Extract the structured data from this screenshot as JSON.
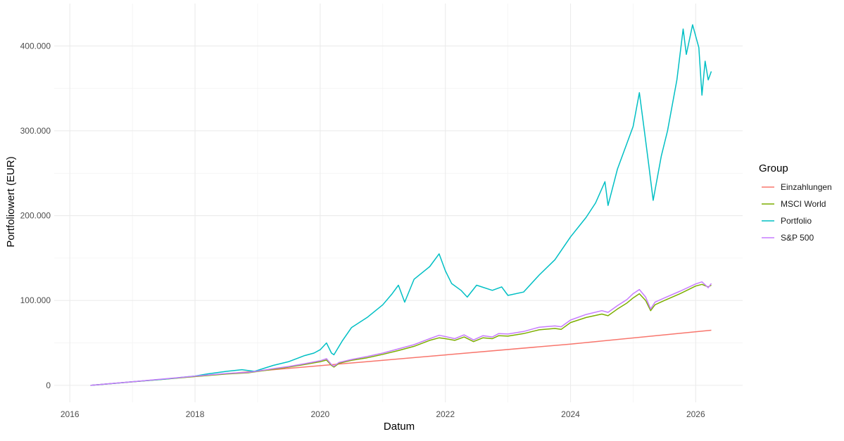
{
  "chart_data": {
    "type": "line",
    "title": "",
    "xlabel": "Datum",
    "ylabel": "Portfoliowert (EUR)",
    "x_tick_labels": [
      "2016",
      "2018",
      "2020",
      "2022",
      "2024",
      "2026"
    ],
    "x_ticks": [
      2016,
      2018,
      2020,
      2022,
      2024,
      2026
    ],
    "y_tick_labels": [
      "0",
      "100.000",
      "200.000",
      "300.000",
      "400.000"
    ],
    "y_ticks": [
      0,
      100000,
      200000,
      300000,
      400000
    ],
    "xlim": [
      2015.75,
      2026.75
    ],
    "ylim": [
      -20000,
      450000
    ],
    "grid": true,
    "legend": {
      "title": "Group",
      "position": "right"
    },
    "series": [
      {
        "name": "Einzahlungen",
        "color": "#F8766D",
        "points": [
          [
            2016.33,
            0
          ],
          [
            2018.0,
            10500
          ],
          [
            2020.0,
            23200
          ],
          [
            2022.0,
            35900
          ],
          [
            2024.0,
            48600
          ],
          [
            2026.25,
            65000
          ]
        ]
      },
      {
        "name": "MSCI World",
        "color": "#7CAE00",
        "points": [
          [
            2016.33,
            0
          ],
          [
            2016.75,
            2600
          ],
          [
            2017.0,
            4100
          ],
          [
            2017.5,
            7200
          ],
          [
            2018.0,
            10300
          ],
          [
            2018.5,
            13400
          ],
          [
            2018.85,
            14800
          ],
          [
            2018.95,
            15900
          ],
          [
            2019.25,
            19000
          ],
          [
            2019.5,
            21500
          ],
          [
            2019.75,
            24500
          ],
          [
            2020.0,
            27800
          ],
          [
            2020.1,
            29800
          ],
          [
            2020.18,
            23500
          ],
          [
            2020.22,
            21500
          ],
          [
            2020.3,
            26000
          ],
          [
            2020.5,
            29500
          ],
          [
            2020.75,
            32500
          ],
          [
            2021.0,
            36500
          ],
          [
            2021.25,
            41000
          ],
          [
            2021.5,
            46000
          ],
          [
            2021.75,
            53000
          ],
          [
            2021.9,
            56000
          ],
          [
            2022.0,
            55000
          ],
          [
            2022.15,
            53000
          ],
          [
            2022.3,
            57000
          ],
          [
            2022.45,
            51500
          ],
          [
            2022.6,
            56000
          ],
          [
            2022.75,
            55000
          ],
          [
            2022.85,
            58500
          ],
          [
            2023.0,
            58000
          ],
          [
            2023.25,
            61000
          ],
          [
            2023.5,
            65500
          ],
          [
            2023.75,
            67000
          ],
          [
            2023.85,
            66000
          ],
          [
            2024.0,
            74000
          ],
          [
            2024.25,
            80000
          ],
          [
            2024.5,
            84000
          ],
          [
            2024.6,
            82000
          ],
          [
            2024.75,
            90000
          ],
          [
            2024.9,
            97000
          ],
          [
            2025.0,
            103000
          ],
          [
            2025.1,
            108000
          ],
          [
            2025.2,
            100000
          ],
          [
            2025.28,
            88000
          ],
          [
            2025.35,
            95000
          ],
          [
            2025.5,
            100000
          ],
          [
            2025.75,
            108000
          ],
          [
            2026.0,
            117000
          ],
          [
            2026.1,
            119000
          ],
          [
            2026.2,
            116000
          ],
          [
            2026.25,
            118000
          ]
        ]
      },
      {
        "name": "Portfolio",
        "color": "#00BFC4",
        "points": [
          [
            2016.33,
            0
          ],
          [
            2016.75,
            2600
          ],
          [
            2017.0,
            4200
          ],
          [
            2017.5,
            7300
          ],
          [
            2018.0,
            11000
          ],
          [
            2018.2,
            13500
          ],
          [
            2018.5,
            16500
          ],
          [
            2018.75,
            18500
          ],
          [
            2018.95,
            16500
          ],
          [
            2019.25,
            23500
          ],
          [
            2019.5,
            28000
          ],
          [
            2019.75,
            35000
          ],
          [
            2019.9,
            38000
          ],
          [
            2020.0,
            42000
          ],
          [
            2020.1,
            50000
          ],
          [
            2020.18,
            38000
          ],
          [
            2020.22,
            36000
          ],
          [
            2020.35,
            52000
          ],
          [
            2020.5,
            68000
          ],
          [
            2020.75,
            80000
          ],
          [
            2021.0,
            95000
          ],
          [
            2021.15,
            108000
          ],
          [
            2021.25,
            118000
          ],
          [
            2021.35,
            98000
          ],
          [
            2021.5,
            125000
          ],
          [
            2021.75,
            140000
          ],
          [
            2021.9,
            155000
          ],
          [
            2022.0,
            135000
          ],
          [
            2022.1,
            120000
          ],
          [
            2022.25,
            112000
          ],
          [
            2022.35,
            104000
          ],
          [
            2022.5,
            118000
          ],
          [
            2022.75,
            112000
          ],
          [
            2022.9,
            116000
          ],
          [
            2023.0,
            106000
          ],
          [
            2023.25,
            110000
          ],
          [
            2023.5,
            130000
          ],
          [
            2023.75,
            148000
          ],
          [
            2024.0,
            175000
          ],
          [
            2024.25,
            198000
          ],
          [
            2024.4,
            215000
          ],
          [
            2024.55,
            240000
          ],
          [
            2024.6,
            212000
          ],
          [
            2024.75,
            255000
          ],
          [
            2024.9,
            285000
          ],
          [
            2025.0,
            305000
          ],
          [
            2025.1,
            345000
          ],
          [
            2025.18,
            300000
          ],
          [
            2025.25,
            260000
          ],
          [
            2025.32,
            218000
          ],
          [
            2025.45,
            270000
          ],
          [
            2025.55,
            300000
          ],
          [
            2025.7,
            360000
          ],
          [
            2025.8,
            420000
          ],
          [
            2025.85,
            390000
          ],
          [
            2025.95,
            425000
          ],
          [
            2026.05,
            398000
          ],
          [
            2026.1,
            342000
          ],
          [
            2026.15,
            382000
          ],
          [
            2026.2,
            360000
          ],
          [
            2026.25,
            370000
          ]
        ]
      },
      {
        "name": "S&P 500",
        "color": "#C77CFF",
        "points": [
          [
            2016.33,
            0
          ],
          [
            2016.75,
            2700
          ],
          [
            2017.0,
            4300
          ],
          [
            2017.5,
            7500
          ],
          [
            2018.0,
            10800
          ],
          [
            2018.5,
            14000
          ],
          [
            2018.85,
            15300
          ],
          [
            2018.95,
            16200
          ],
          [
            2019.25,
            19700
          ],
          [
            2019.5,
            22300
          ],
          [
            2019.75,
            25500
          ],
          [
            2020.0,
            29000
          ],
          [
            2020.1,
            31500
          ],
          [
            2020.18,
            24500
          ],
          [
            2020.22,
            22500
          ],
          [
            2020.3,
            27000
          ],
          [
            2020.5,
            30500
          ],
          [
            2020.75,
            34000
          ],
          [
            2021.0,
            38000
          ],
          [
            2021.25,
            43000
          ],
          [
            2021.5,
            48000
          ],
          [
            2021.75,
            55000
          ],
          [
            2021.9,
            59000
          ],
          [
            2022.0,
            57500
          ],
          [
            2022.15,
            55000
          ],
          [
            2022.3,
            59500
          ],
          [
            2022.45,
            53500
          ],
          [
            2022.6,
            58500
          ],
          [
            2022.75,
            57000
          ],
          [
            2022.85,
            61000
          ],
          [
            2023.0,
            60500
          ],
          [
            2023.25,
            63500
          ],
          [
            2023.5,
            68500
          ],
          [
            2023.75,
            70000
          ],
          [
            2023.85,
            69000
          ],
          [
            2024.0,
            77000
          ],
          [
            2024.25,
            83500
          ],
          [
            2024.5,
            88000
          ],
          [
            2024.6,
            86000
          ],
          [
            2024.75,
            94000
          ],
          [
            2024.9,
            101000
          ],
          [
            2025.0,
            108000
          ],
          [
            2025.1,
            113000
          ],
          [
            2025.2,
            104000
          ],
          [
            2025.28,
            90000
          ],
          [
            2025.35,
            98000
          ],
          [
            2025.5,
            103000
          ],
          [
            2025.75,
            111000
          ],
          [
            2026.0,
            119500
          ],
          [
            2026.1,
            122000
          ],
          [
            2026.2,
            115000
          ],
          [
            2026.25,
            120000
          ]
        ]
      }
    ]
  }
}
